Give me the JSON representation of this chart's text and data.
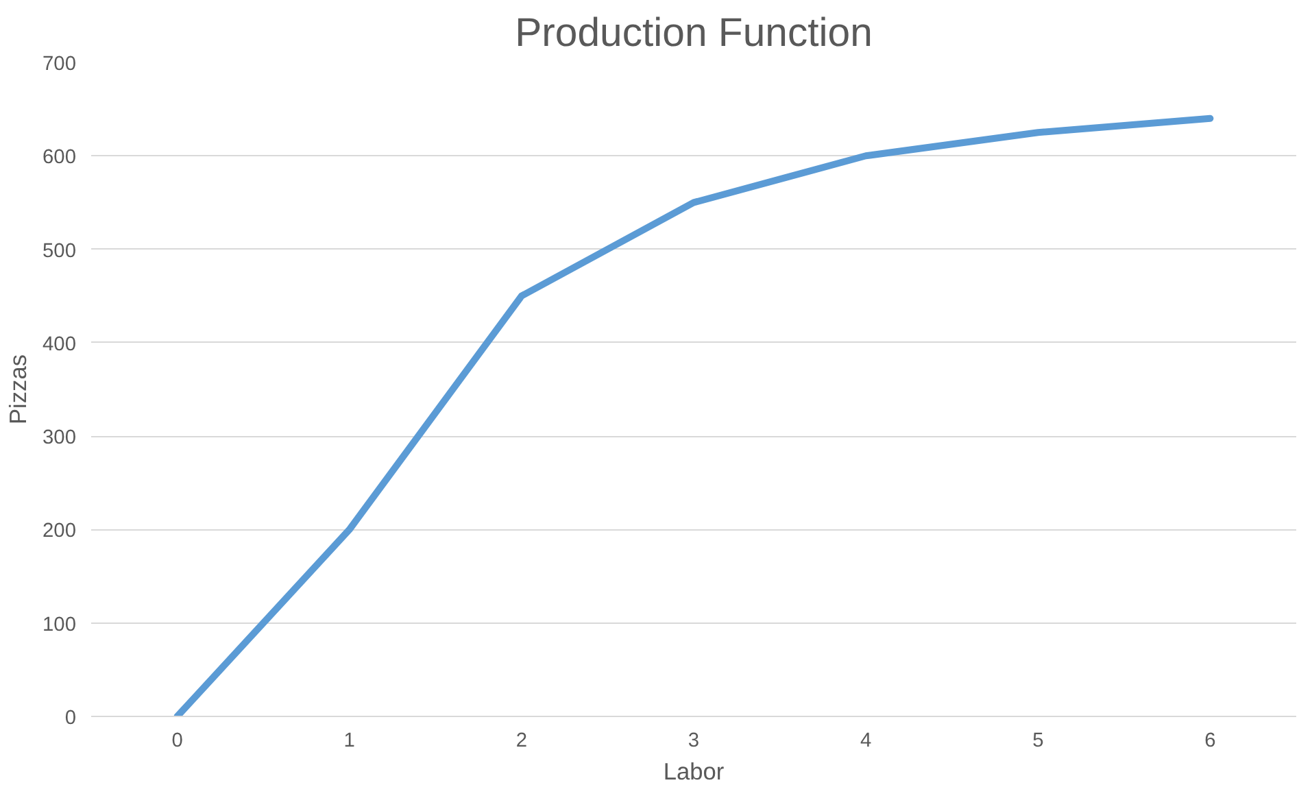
{
  "chart_data": {
    "type": "line",
    "title": "Production Function",
    "xlabel": "Labor",
    "ylabel": "Pizzas",
    "categories": [
      "0",
      "1",
      "2",
      "3",
      "4",
      "5",
      "6"
    ],
    "series": [
      {
        "color": "#5b9bd5",
        "values": [
          0,
          200,
          450,
          550,
          600,
          625,
          640
        ]
      }
    ],
    "ylim": [
      0,
      700
    ],
    "yticks": [
      0,
      100,
      200,
      300,
      400,
      500,
      600,
      700
    ],
    "grid": "y"
  }
}
